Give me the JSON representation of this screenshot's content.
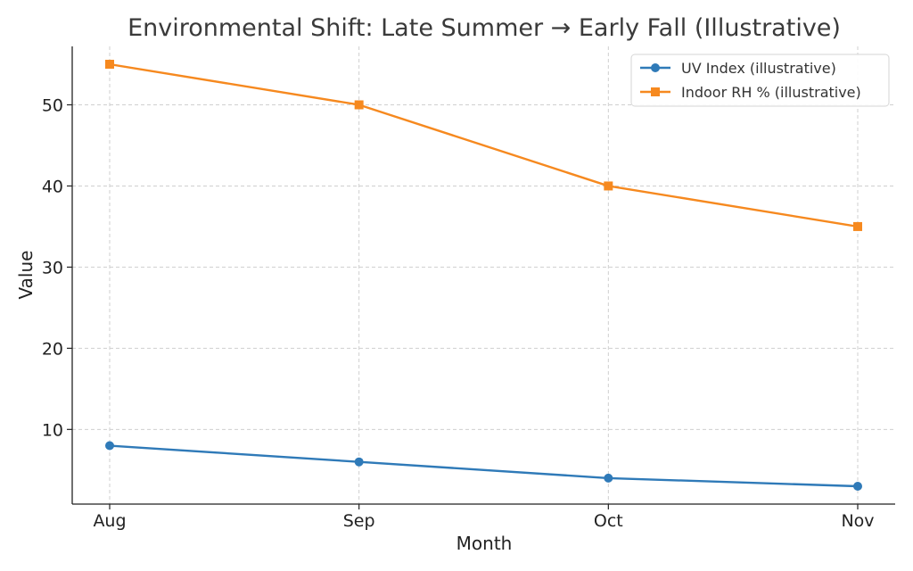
{
  "chart_data": {
    "type": "line",
    "title": "Environmental Shift: Late Summer → Early Fall (Illustrative)",
    "xlabel": "Month",
    "ylabel": "Value",
    "categories": [
      "Aug",
      "Sep",
      "Oct",
      "Nov"
    ],
    "ylim": [
      0.8,
      57.2
    ],
    "yticks": [
      10,
      20,
      30,
      40,
      50
    ],
    "grid": true,
    "legend_position": "top-right",
    "series": [
      {
        "name": "UV Index (illustrative)",
        "values": [
          8,
          6,
          4,
          3
        ],
        "color": "#2f7ab8",
        "marker": "circle"
      },
      {
        "name": "Indoor RH % (illustrative)",
        "values": [
          55,
          50,
          40,
          35
        ],
        "color": "#f6891f",
        "marker": "square"
      }
    ]
  }
}
